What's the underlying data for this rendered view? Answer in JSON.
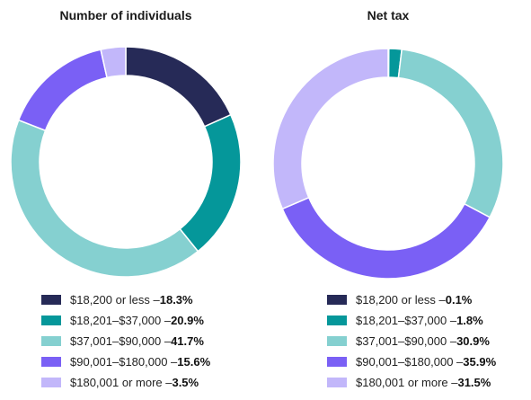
{
  "chart_data": [
    {
      "type": "pie",
      "title": "Number of individuals",
      "categories": [
        "$18,200 or less",
        "$18,201–$37,000",
        "$37,001–$90,000",
        "$90,001–$180,000",
        "$180,001 or more"
      ],
      "values": [
        18.3,
        20.9,
        41.7,
        15.6,
        3.5
      ],
      "value_labels": [
        "18.3%",
        "20.9%",
        "41.7%",
        "15.6%",
        "3.5%"
      ],
      "colors": [
        "#262a57",
        "#05979a",
        "#85d0d0",
        "#7a60f5",
        "#c2b7fa"
      ],
      "legend_position": "bottom",
      "start_angle_deg": 0,
      "direction": "clockwise"
    },
    {
      "type": "pie",
      "title": "Net tax",
      "categories": [
        "$18,200 or less",
        "$18,201–$37,000",
        "$37,001–$90,000",
        "$90,001–$180,000",
        "$180,001 or more"
      ],
      "values": [
        0.1,
        1.8,
        30.9,
        35.9,
        31.5
      ],
      "value_labels": [
        "0.1%",
        "1.8%",
        "30.9%",
        "35.9%",
        "31.5%"
      ],
      "colors": [
        "#262a57",
        "#05979a",
        "#85d0d0",
        "#7a60f5",
        "#c2b7fa"
      ],
      "legend_position": "bottom",
      "start_angle_deg": 0,
      "direction": "clockwise"
    }
  ]
}
